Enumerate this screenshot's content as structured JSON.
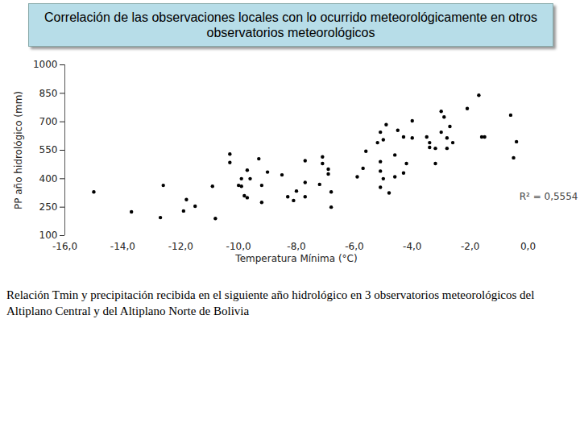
{
  "chart_data": {
    "type": "scatter",
    "title": "Correlación de las observaciones locales con lo ocurrido meteorológicamente en otros observatorios meteorológicos",
    "x_label": "Temperatura Mínima (°C)",
    "y_label": "PP año hidrológico (mm)",
    "caption": "Relación Tmin y precipitación recibida en el siguiente año hidrológico en 3 observatorios meteorológicos del Altiplano Central y del Altiplano Norte de Bolivia",
    "annotations": [
      "R² = 0,5554"
    ],
    "color": "#000000",
    "marker": "circle",
    "grid": false,
    "xlim": [
      -16,
      0
    ],
    "xticks": [
      {
        "value": -16,
        "label": "-16,0"
      },
      {
        "value": -14,
        "label": "-14,0"
      },
      {
        "value": -12,
        "label": "-12,0"
      },
      {
        "value": -10,
        "label": "-10,0"
      },
      {
        "value": -8,
        "label": "-8,0"
      },
      {
        "value": -6,
        "label": "-6,0"
      },
      {
        "value": -4,
        "label": "-4,0"
      },
      {
        "value": -2,
        "label": "-2,0"
      },
      {
        "value": 0,
        "label": "0,0"
      }
    ],
    "ylim": [
      100,
      1000
    ],
    "yticks": [
      100,
      250,
      400,
      550,
      700,
      850,
      1000
    ],
    "x": [
      -15.0,
      -13.7,
      -12.7,
      -12.6,
      -11.9,
      -11.8,
      -11.5,
      -10.9,
      -10.8,
      -10.3,
      -10.3,
      -10.0,
      -9.9,
      -9.9,
      -9.8,
      -9.7,
      -9.7,
      -9.6,
      -9.3,
      -9.2,
      -9.2,
      -9.0,
      -8.5,
      -8.3,
      -8.1,
      -8.0,
      -7.7,
      -7.7,
      -7.7,
      -7.2,
      -7.1,
      -7.1,
      -6.9,
      -6.9,
      -6.8,
      -6.8,
      -5.9,
      -5.7,
      -5.6,
      -5.2,
      -5.1,
      -5.1,
      -5.1,
      -5.1,
      -5.0,
      -5.0,
      -4.9,
      -4.8,
      -4.6,
      -4.6,
      -4.5,
      -4.3,
      -4.3,
      -4.2,
      -4.0,
      -4.0,
      -3.5,
      -3.4,
      -3.4,
      -3.2,
      -3.2,
      -3.0,
      -3.0,
      -2.9,
      -2.8,
      -2.8,
      -2.7,
      -2.6,
      -2.1,
      -1.7,
      -1.6,
      -1.5,
      -0.6,
      -0.5,
      -0.4
    ],
    "values": [
      330,
      225,
      195,
      365,
      230,
      290,
      255,
      360,
      190,
      530,
      485,
      365,
      360,
      400,
      310,
      300,
      445,
      400,
      505,
      365,
      275,
      435,
      420,
      305,
      285,
      335,
      495,
      380,
      305,
      370,
      515,
      480,
      450,
      425,
      330,
      250,
      410,
      455,
      545,
      590,
      490,
      440,
      355,
      645,
      605,
      400,
      685,
      325,
      410,
      525,
      655,
      430,
      620,
      480,
      615,
      705,
      620,
      590,
      565,
      480,
      560,
      755,
      645,
      725,
      615,
      560,
      675,
      590,
      770,
      840,
      620,
      620,
      735,
      510,
      595
    ]
  }
}
